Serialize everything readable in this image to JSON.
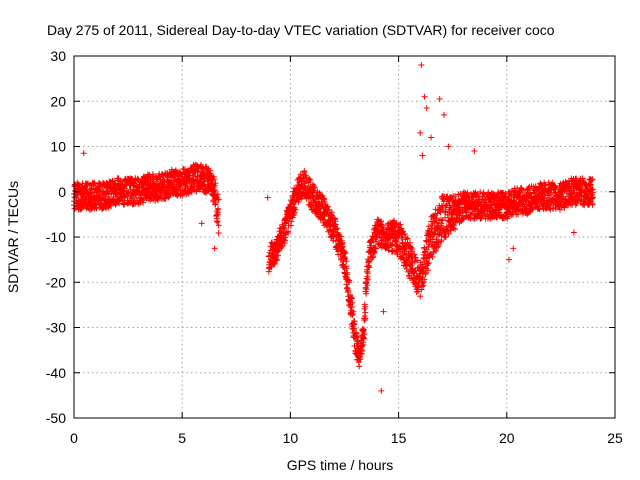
{
  "chart_data": {
    "type": "scatter",
    "title": "Day 275 of 2011, Sidereal Day-to-day VTEC variation (SDTVAR) for receiver coco",
    "xlabel": "GPS time / hours",
    "ylabel": "SDTVAR / TECUs",
    "xlim": [
      0,
      25
    ],
    "ylim": [
      -50,
      30
    ],
    "xticks": [
      0,
      5,
      10,
      15,
      20,
      25
    ],
    "xtick_labels": [
      "0",
      "5",
      "10",
      "15",
      "20",
      "25"
    ],
    "yticks": [
      -50,
      -40,
      -30,
      -20,
      -10,
      0,
      10,
      20,
      30
    ],
    "ytick_labels": [
      "-50",
      "-40",
      "-30",
      "-20",
      "-10",
      "0",
      "10",
      "20",
      "30"
    ],
    "grid": true,
    "marker": "+",
    "colors": {
      "series": "#ff0000",
      "grid": "#a0a0a0",
      "axis": "#000000"
    },
    "series": [
      {
        "name": "SDTVAR",
        "segments": [
          {
            "x": [
              0.0,
              0.5,
              1.0,
              1.5,
              2.0,
              2.5,
              3.0,
              3.5,
              4.0,
              4.5,
              5.0,
              5.5,
              6.0,
              6.3,
              6.5,
              6.7
            ],
            "y": [
              -1,
              -1,
              -1,
              -1,
              0,
              0,
              0,
              1,
              1,
              2,
              2,
              3,
              3,
              2,
              0,
              -6
            ],
            "spread": [
              3,
              3,
              3,
              3,
              3,
              3,
              3,
              3,
              3,
              3,
              3,
              3,
              3,
              3,
              3,
              4
            ]
          },
          {
            "x": [
              9.0,
              9.3,
              9.6,
              10.0,
              10.3,
              10.6,
              11.0,
              11.5,
              12.0,
              12.5,
              12.8,
              13.0,
              13.2,
              13.4,
              13.6,
              14.0,
              14.5,
              15.0,
              15.5,
              16.0,
              16.5,
              17.0,
              17.5,
              18.0,
              18.5,
              19.0,
              19.5,
              20.0,
              20.5,
              21.0,
              21.5,
              22.0,
              22.5,
              23.0,
              23.5,
              24.0
            ],
            "y": [
              -15,
              -13,
              -10,
              -5,
              0,
              2,
              -1,
              -4,
              -8,
              -15,
              -25,
              -33,
              -37,
              -30,
              -15,
              -9,
              -10,
              -10,
              -15,
              -20,
              -10,
              -6,
              -5,
              -3,
              -3,
              -3,
              -3,
              -3,
              -2,
              -2,
              -1,
              -1,
              -1,
              0,
              0,
              0
            ],
            "spread": [
              3,
              3,
              3,
              3,
              3,
              3,
              3,
              3,
              3,
              3,
              3,
              3,
              2,
              3,
              3,
              3,
              3,
              4,
              4,
              4,
              5,
              5,
              4,
              3,
              3,
              3,
              3,
              3,
              3,
              3,
              3,
              3,
              3,
              3,
              3,
              3
            ]
          }
        ],
        "outliers": [
          {
            "x": 0.45,
            "y": 8.5
          },
          {
            "x": 8.95,
            "y": -1.3
          },
          {
            "x": 14.2,
            "y": -44
          },
          {
            "x": 14.3,
            "y": -26.5
          },
          {
            "x": 16.05,
            "y": 28
          },
          {
            "x": 16.2,
            "y": 21
          },
          {
            "x": 16.3,
            "y": 18.5
          },
          {
            "x": 16.0,
            "y": 13
          },
          {
            "x": 16.5,
            "y": 12
          },
          {
            "x": 16.9,
            "y": 20.5
          },
          {
            "x": 17.1,
            "y": 17
          },
          {
            "x": 17.3,
            "y": 10
          },
          {
            "x": 16.1,
            "y": 8
          },
          {
            "x": 18.5,
            "y": 9
          },
          {
            "x": 20.1,
            "y": -15
          },
          {
            "x": 20.3,
            "y": -12.5
          },
          {
            "x": 6.5,
            "y": -12.5
          },
          {
            "x": 23.1,
            "y": -9
          },
          {
            "x": 5.9,
            "y": -7
          }
        ]
      }
    ]
  }
}
